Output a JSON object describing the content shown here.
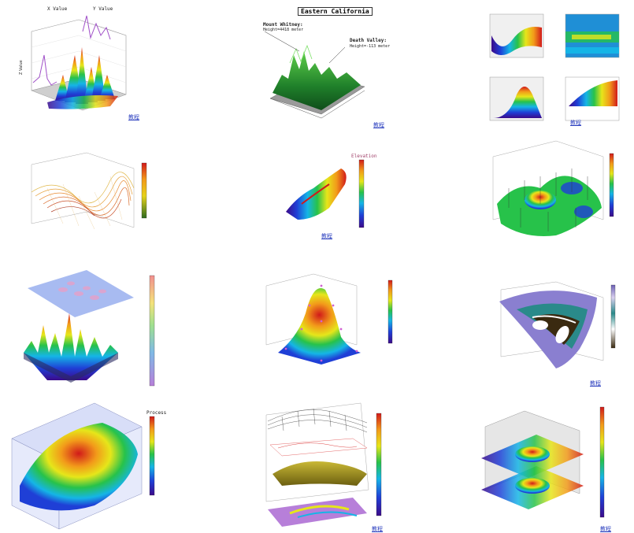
{
  "page": {
    "background": "#ffffff"
  },
  "links": {
    "c1": "教程",
    "c2": "教程",
    "c3": "教程",
    "c4": "教程",
    "c5": "教程",
    "c6": "教程",
    "c7": "教程",
    "c8": "教程",
    "c9": "教程",
    "c10": "教程",
    "c11": "教程",
    "c12": "教程"
  },
  "texts": {
    "c1_xvalue": "X Value",
    "c1_yvalue": "Y Value",
    "c2_title": "Eastern California",
    "c2_whitney": "Mount Whitney:",
    "c2_whitney_sub": "Height=4418 meter",
    "c2_death": "Death Valley:",
    "c2_death_sub": "Height=-113 meter",
    "c5_legend_title": "Elevation",
    "c10_legend_title": "Process"
  },
  "icons": {
    "plot_surface": "surface-plot-icon"
  },
  "colors": {
    "link": "#2b3fbf",
    "rainbow": [
      "#3b0a8a",
      "#1f3fd6",
      "#15b5e6",
      "#27c24a",
      "#e6e61a",
      "#f29a1a",
      "#d11a1a"
    ]
  }
}
